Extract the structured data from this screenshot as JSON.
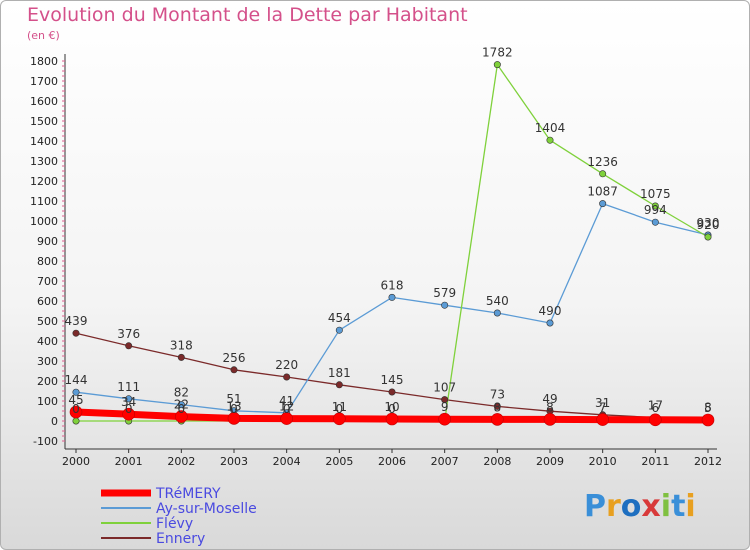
{
  "title": "Evolution du Montant de la Dette par Habitant",
  "unit_label": "(en €)",
  "logo_text": "Proxiti",
  "chart_data": {
    "type": "line",
    "x": [
      "2000",
      "2001",
      "2002",
      "2003",
      "2004",
      "2005",
      "2006",
      "2007",
      "2008",
      "2009",
      "2010",
      "2011",
      "2012"
    ],
    "ylim": [
      -100,
      1800
    ],
    "yticks": [
      -100,
      0,
      100,
      200,
      300,
      400,
      500,
      600,
      700,
      800,
      900,
      1000,
      1100,
      1200,
      1300,
      1400,
      1500,
      1600,
      1700,
      1800
    ],
    "grid": false,
    "legend_position": "bottom-left",
    "series": [
      {
        "name": "TRéMERY",
        "color": "#ff0000",
        "width": 7,
        "values": [
          45,
          34,
          22,
          13,
          12,
          11,
          10,
          9,
          8,
          8,
          7,
          6,
          5
        ],
        "labels": [
          "45",
          "34",
          "22",
          "13",
          "12",
          "11",
          "10",
          "9",
          "8",
          "8",
          "7",
          "6",
          "5"
        ]
      },
      {
        "name": "Ay-sur-Moselle",
        "color": "#5b9bd5",
        "width": 1.3,
        "values": [
          144,
          111,
          82,
          51,
          41,
          454,
          618,
          579,
          540,
          490,
          1087,
          994,
          930
        ],
        "labels": [
          "144",
          "111",
          "82",
          "51",
          "41",
          "454",
          "618",
          "579",
          "540",
          "490",
          "1087",
          "994",
          "930"
        ]
      },
      {
        "name": "Flévy",
        "color": "#7fd13b",
        "width": 1.3,
        "values": [
          0,
          0,
          0,
          0,
          0,
          0,
          0,
          0,
          1782,
          1404,
          1236,
          1075,
          920
        ],
        "labels": [
          "0",
          "0",
          "0",
          "0",
          "0",
          "0",
          "0",
          "",
          "1782",
          "1404",
          "1236",
          "1075",
          "920"
        ]
      },
      {
        "name": "Ennery",
        "color": "#7b2a2a",
        "width": 1.3,
        "values": [
          439,
          376,
          318,
          256,
          220,
          181,
          145,
          107,
          73,
          49,
          31,
          17,
          8
        ],
        "labels": [
          "439",
          "376",
          "318",
          "256",
          "220",
          "181",
          "145",
          "107",
          "73",
          "49",
          "31",
          "17",
          "8"
        ]
      }
    ]
  }
}
